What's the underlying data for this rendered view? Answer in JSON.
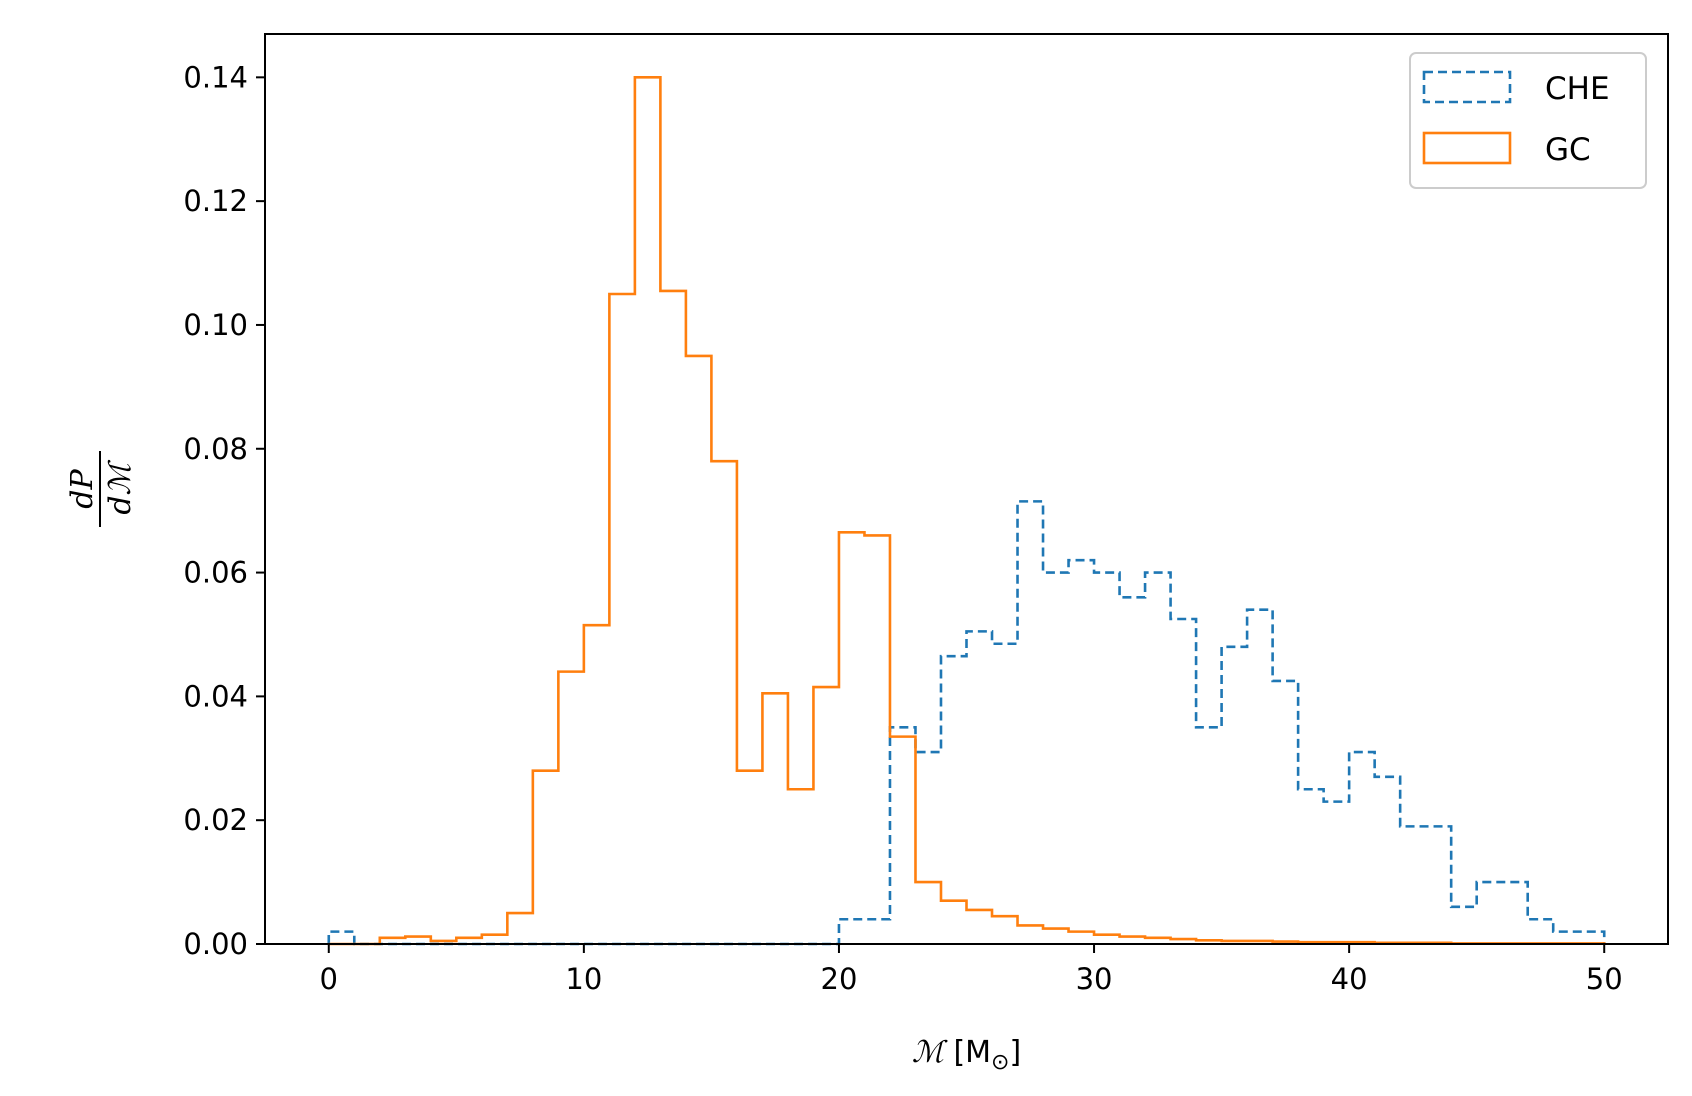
{
  "chart_data": {
    "type": "histogram",
    "xlabel": {
      "symbol": "ℳ",
      "unit_open": " [M",
      "unit_sub": "⊙",
      "unit_close": "]"
    },
    "ylabel": {
      "numerator": "dP",
      "denominator": "dℳ"
    },
    "xlim": [
      -2.5,
      52.5
    ],
    "ylim": [
      0,
      0.147
    ],
    "xticks": [
      0,
      10,
      20,
      30,
      40,
      50
    ],
    "yticks": [
      0.0,
      0.02,
      0.04,
      0.06,
      0.08,
      0.1,
      0.12,
      0.14
    ],
    "xtick_labels": [
      "0",
      "10",
      "20",
      "30",
      "40",
      "50"
    ],
    "ytick_labels": [
      "0.00",
      "0.02",
      "0.04",
      "0.06",
      "0.08",
      "0.10",
      "0.12",
      "0.14"
    ],
    "bin_edges": [
      0,
      1,
      2,
      3,
      4,
      5,
      6,
      7,
      8,
      9,
      10,
      11,
      12,
      13,
      14,
      15,
      16,
      17,
      18,
      19,
      20,
      21,
      22,
      23,
      24,
      25,
      26,
      27,
      28,
      29,
      30,
      31,
      32,
      33,
      34,
      35,
      36,
      37,
      38,
      39,
      40,
      41,
      42,
      43,
      44,
      45,
      46,
      47,
      48,
      49,
      50
    ],
    "legend_position": "top-right",
    "grid": false,
    "series": [
      {
        "name": "CHE",
        "color": "#1f77b4",
        "style": "dashed",
        "values": [
          0.002,
          0,
          0,
          0,
          0,
          0,
          0,
          0,
          0,
          0,
          0,
          0,
          0,
          0,
          0,
          0,
          0,
          0,
          0,
          0,
          0.004,
          0.004,
          0.035,
          0.031,
          0.0465,
          0.0505,
          0.0485,
          0.0715,
          0.06,
          0.062,
          0.06,
          0.056,
          0.06,
          0.0525,
          0.035,
          0.048,
          0.054,
          0.0425,
          0.025,
          0.023,
          0.031,
          0.027,
          0.019,
          0.019,
          0.006,
          0.01,
          0.01,
          0.004,
          0.002,
          0.002
        ]
      },
      {
        "name": "GC",
        "color": "#ff7f0e",
        "style": "solid",
        "values": [
          0,
          0,
          0.001,
          0.0012,
          0.0005,
          0.001,
          0.0015,
          0.005,
          0.028,
          0.044,
          0.0515,
          0.105,
          0.14,
          0.1055,
          0.095,
          0.078,
          0.028,
          0.0405,
          0.025,
          0.0415,
          0.0665,
          0.066,
          0.0335,
          0.01,
          0.007,
          0.0055,
          0.0045,
          0.003,
          0.0025,
          0.002,
          0.0015,
          0.0012,
          0.001,
          0.0008,
          0.0006,
          0.0005,
          0.0005,
          0.0004,
          0.0003,
          0.0003,
          0.0003,
          0.0002,
          0.0002,
          0.0002,
          0.0001,
          0.0001,
          0.0001,
          0.0001,
          0.0001,
          0.0001
        ]
      }
    ]
  }
}
